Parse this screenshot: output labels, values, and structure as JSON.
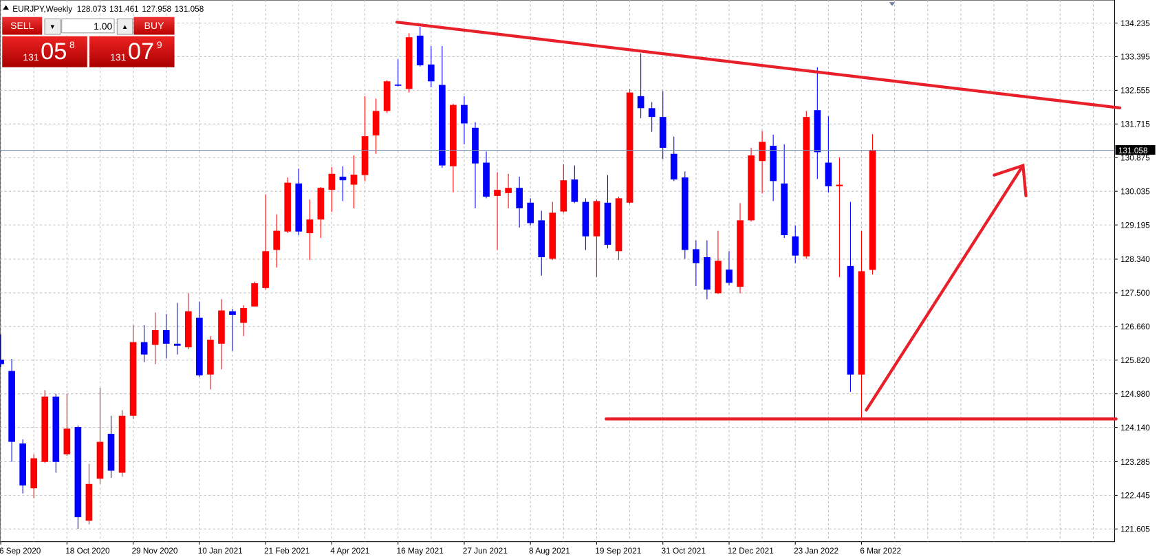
{
  "chart_data": {
    "type": "candlestick",
    "title": "EURJPY,Weekly",
    "categories": [
      "6 Sep 2020",
      null,
      null,
      null,
      null,
      null,
      "18 Oct 2020",
      null,
      null,
      null,
      null,
      null,
      "29 Nov 2020",
      null,
      null,
      null,
      null,
      null,
      "10 Jan 2021",
      null,
      null,
      null,
      null,
      null,
      "21 Feb 2021",
      null,
      null,
      null,
      null,
      null,
      "4 Apr 2021",
      null,
      null,
      null,
      null,
      null,
      "16 May 2021",
      null,
      null,
      null,
      null,
      null,
      "27 Jun 2021",
      null,
      null,
      null,
      null,
      null,
      "8 Aug 2021",
      null,
      null,
      null,
      null,
      null,
      "19 Sep 2021",
      null,
      null,
      null,
      null,
      null,
      "31 Oct 2021",
      null,
      null,
      null,
      null,
      null,
      "12 Dec 2021",
      null,
      null,
      null,
      null,
      null,
      "23 Jan 2022",
      null,
      null,
      null,
      null,
      null,
      "6 Mar 2022",
      null
    ],
    "open": [
      125.83,
      125.55,
      123.74,
      122.62,
      123.28,
      124.91,
      123.47,
      124.15,
      121.81,
      122.86,
      123.98,
      123.01,
      124.43,
      126.27,
      126.2,
      126.57,
      126.23,
      126.14,
      126.88,
      125.46,
      126.23,
      127.04,
      126.75,
      127.16,
      127.62,
      128.57,
      129.03,
      130.23,
      128.99,
      129.33,
      130.07,
      130.4,
      130.2,
      130.44,
      131.43,
      132.04,
      132.7,
      132.59,
      133.92,
      133.2,
      132.69,
      130.66,
      132.19,
      131.62,
      130.75,
      129.92,
      129.99,
      130.12,
      129.75,
      129.31,
      128.35,
      129.53,
      130.33,
      129.77,
      128.91,
      129.75,
      128.54,
      129.75,
      132.41,
      132.11,
      131.89,
      130.97,
      130.38,
      128.59,
      128.39,
      127.49,
      128.08,
      127.65,
      129.31,
      130.79,
      131.17,
      130.23,
      128.91,
      128.41,
      132.06,
      130.75,
      130.16,
      128.17,
      125.46,
      128.073
    ],
    "high": [
      126.46,
      125.85,
      123.84,
      123.47,
      125.07,
      124.98,
      124.98,
      124.19,
      123.23,
      125.13,
      124.43,
      124.57,
      126.69,
      126.69,
      127.01,
      126.97,
      127.25,
      127.49,
      127.28,
      126.42,
      127.34,
      127.1,
      127.19,
      127.78,
      129.96,
      129.46,
      130.38,
      130.6,
      129.83,
      130.14,
      130.64,
      130.66,
      130.93,
      132.41,
      132.35,
      132.81,
      133.33,
      133.98,
      134.14,
      133.66,
      133.66,
      132.22,
      132.41,
      131.76,
      131.03,
      130.51,
      130.47,
      130.4,
      129.86,
      129.55,
      129.77,
      130.71,
      130.68,
      129.86,
      129.83,
      130.44,
      129.9,
      132.59,
      133.48,
      132.26,
      132.54,
      131.4,
      130.53,
      128.81,
      128.81,
      129.05,
      128.54,
      129.74,
      131.12,
      131.54,
      131.45,
      131.21,
      129.18,
      132.04,
      133.13,
      131.91,
      130.88,
      129.77,
      129.05,
      131.461
    ],
    "low": [
      125.64,
      123.28,
      122.49,
      122.38,
      123.25,
      123.01,
      123.43,
      121.61,
      121.72,
      122.73,
      122.88,
      122.91,
      124.35,
      125.77,
      125.72,
      125.86,
      125.96,
      126.09,
      125.4,
      125.09,
      125.59,
      126.05,
      126.42,
      127.16,
      127.58,
      128.13,
      128.99,
      128.94,
      128.32,
      128.87,
      129.52,
      129.79,
      129.61,
      130.29,
      130.97,
      131.99,
      132.65,
      132.5,
      133.15,
      132.63,
      130.62,
      130.01,
      131.21,
      129.61,
      129.86,
      128.57,
      129.61,
      129.13,
      129.18,
      127.93,
      128.32,
      129.5,
      129.74,
      128.57,
      127.89,
      128.61,
      128.32,
      129.72,
      131.86,
      131.52,
      130.84,
      130.29,
      128.35,
      127.67,
      127.34,
      127.47,
      127.69,
      127.49,
      129.28,
      129.98,
      129.79,
      128.87,
      128.24,
      128.35,
      130.34,
      130.01,
      127.89,
      125.03,
      124.35,
      127.958
    ],
    "close": [
      125.72,
      123.78,
      122.69,
      123.37,
      124.91,
      123.28,
      124.11,
      121.9,
      122.73,
      123.78,
      123.06,
      124.43,
      126.27,
      125.96,
      126.57,
      126.23,
      126.18,
      127.04,
      125.44,
      126.33,
      127.06,
      126.95,
      127.12,
      127.74,
      128.54,
      129.05,
      130.25,
      129.03,
      129.33,
      130.12,
      130.47,
      130.31,
      130.45,
      131.41,
      132.04,
      132.78,
      132.67,
      133.88,
      133.18,
      132.78,
      130.68,
      132.19,
      131.73,
      130.73,
      129.9,
      130.07,
      130.12,
      129.61,
      129.24,
      128.39,
      129.5,
      130.31,
      129.77,
      128.91,
      129.79,
      128.7,
      129.86,
      132.5,
      132.11,
      131.89,
      131.12,
      130.33,
      128.57,
      128.24,
      127.58,
      128.3,
      127.75,
      129.31,
      130.93,
      131.27,
      130.29,
      128.94,
      128.43,
      131.89,
      131.01,
      130.16,
      130.2,
      125.46,
      128.04,
      131.058
    ],
    "up_color": "#ff0000",
    "down_color": "#0000ff",
    "ylim": [
      121.29,
      134.81
    ],
    "yticks": [
      134.235,
      133.395,
      132.555,
      131.715,
      130.875,
      130.035,
      129.195,
      {
        "value": 128.34,
        "label": "128.340"
      },
      {
        "value": 127.5,
        "label": "127.500"
      },
      {
        "value": 126.66,
        "label": "126.660"
      },
      {
        "value": 125.82,
        "label": "125.820"
      },
      {
        "value": 124.98,
        "label": "124.980"
      },
      {
        "value": 124.14,
        "label": "124.140"
      },
      123.285,
      122.445,
      121.605
    ],
    "grid": true
  },
  "trade_panel": {
    "sell_label": "SELL",
    "buy_label": "BUY",
    "lots": "1.00",
    "bid": {
      "figure": "131",
      "pips": "05",
      "point": "8"
    },
    "ask": {
      "figure": "131",
      "pips": "07",
      "point": "9"
    }
  }
}
